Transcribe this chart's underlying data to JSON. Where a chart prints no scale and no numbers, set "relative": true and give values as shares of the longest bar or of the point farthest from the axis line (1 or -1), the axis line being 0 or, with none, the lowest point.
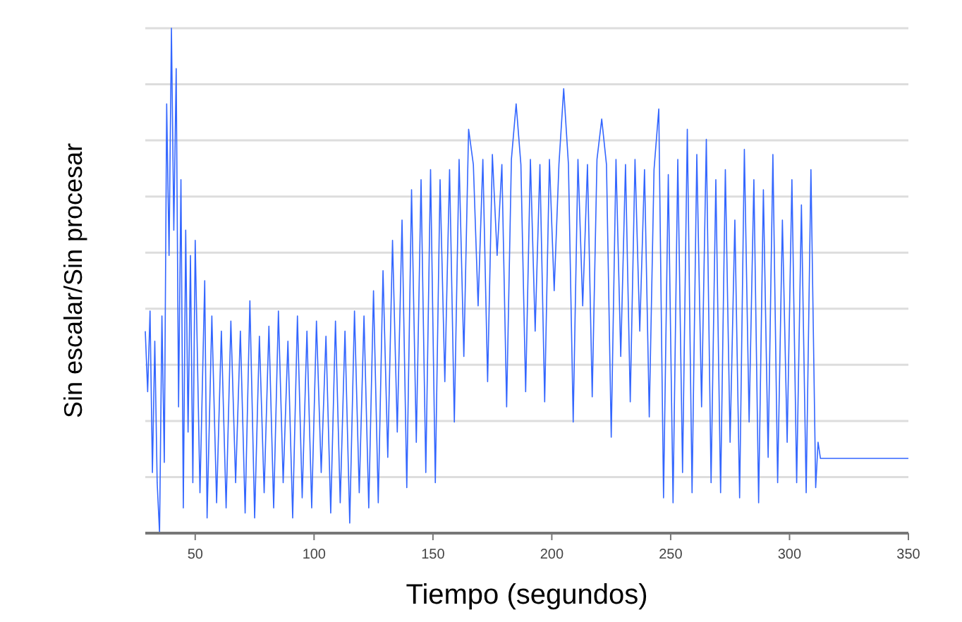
{
  "chart_data": {
    "type": "line",
    "xlabel": "Tiempo (segundos)",
    "ylabel": "Sin escalar/Sin procesar",
    "relative": true,
    "grid": "y",
    "xlim": [
      29,
      350
    ],
    "xticks": [
      50,
      100,
      150,
      200,
      250,
      300,
      350
    ],
    "series": [
      {
        "color": "#3366ff",
        "x": [
          29,
          30,
          31,
          32,
          33,
          34,
          35,
          36,
          37,
          38,
          39,
          40,
          41,
          42,
          43,
          44,
          45,
          46,
          47,
          48,
          49,
          50,
          52,
          54,
          55,
          57,
          59,
          61,
          63,
          65,
          67,
          69,
          71,
          73,
          75,
          77,
          79,
          81,
          83,
          85,
          87,
          89,
          91,
          93,
          95,
          97,
          99,
          101,
          103,
          105,
          107,
          109,
          111,
          113,
          115,
          117,
          119,
          121,
          123,
          125,
          127,
          129,
          131,
          133,
          135,
          137,
          139,
          141,
          143,
          145,
          147,
          149,
          151,
          153,
          155,
          157,
          159,
          161,
          163,
          165,
          167,
          169,
          171,
          173,
          175,
          177,
          179,
          181,
          183,
          185,
          187,
          189,
          191,
          193,
          195,
          197,
          199,
          201,
          203,
          205,
          207,
          209,
          211,
          213,
          215,
          217,
          219,
          221,
          223,
          225,
          227,
          229,
          231,
          233,
          235,
          237,
          239,
          241,
          243,
          245,
          247,
          249,
          251,
          253,
          255,
          257,
          259,
          261,
          263,
          265,
          267,
          269,
          271,
          273,
          275,
          277,
          279,
          281,
          283,
          285,
          287,
          289,
          291,
          293,
          295,
          297,
          299,
          301,
          303,
          305,
          307,
          309,
          311,
          312,
          313,
          350
        ],
        "values": [
          0.4,
          0.28,
          0.44,
          0.12,
          0.38,
          0.1,
          0.0,
          0.43,
          0.14,
          0.85,
          0.55,
          1.0,
          0.6,
          0.92,
          0.25,
          0.7,
          0.05,
          0.6,
          0.2,
          0.55,
          0.1,
          0.58,
          0.08,
          0.5,
          0.03,
          0.43,
          0.06,
          0.4,
          0.05,
          0.42,
          0.1,
          0.4,
          0.04,
          0.46,
          0.03,
          0.39,
          0.08,
          0.41,
          0.05,
          0.44,
          0.1,
          0.38,
          0.03,
          0.43,
          0.07,
          0.4,
          0.05,
          0.42,
          0.12,
          0.39,
          0.04,
          0.42,
          0.06,
          0.4,
          0.02,
          0.44,
          0.08,
          0.43,
          0.05,
          0.48,
          0.06,
          0.52,
          0.15,
          0.58,
          0.2,
          0.62,
          0.09,
          0.68,
          0.18,
          0.7,
          0.12,
          0.72,
          0.1,
          0.7,
          0.3,
          0.72,
          0.22,
          0.74,
          0.35,
          0.8,
          0.73,
          0.45,
          0.74,
          0.3,
          0.75,
          0.55,
          0.73,
          0.25,
          0.74,
          0.85,
          0.73,
          0.28,
          0.74,
          0.4,
          0.73,
          0.26,
          0.74,
          0.48,
          0.73,
          0.88,
          0.73,
          0.22,
          0.74,
          0.45,
          0.73,
          0.27,
          0.74,
          0.82,
          0.73,
          0.19,
          0.74,
          0.35,
          0.73,
          0.26,
          0.74,
          0.4,
          0.72,
          0.23,
          0.72,
          0.84,
          0.07,
          0.71,
          0.06,
          0.74,
          0.12,
          0.8,
          0.08,
          0.75,
          0.25,
          0.78,
          0.1,
          0.7,
          0.08,
          0.72,
          0.18,
          0.62,
          0.07,
          0.76,
          0.22,
          0.7,
          0.06,
          0.68,
          0.15,
          0.75,
          0.1,
          0.62,
          0.18,
          0.7,
          0.1,
          0.65,
          0.08,
          0.72,
          0.09,
          0.18,
          0.148,
          0.148
        ]
      }
    ]
  }
}
